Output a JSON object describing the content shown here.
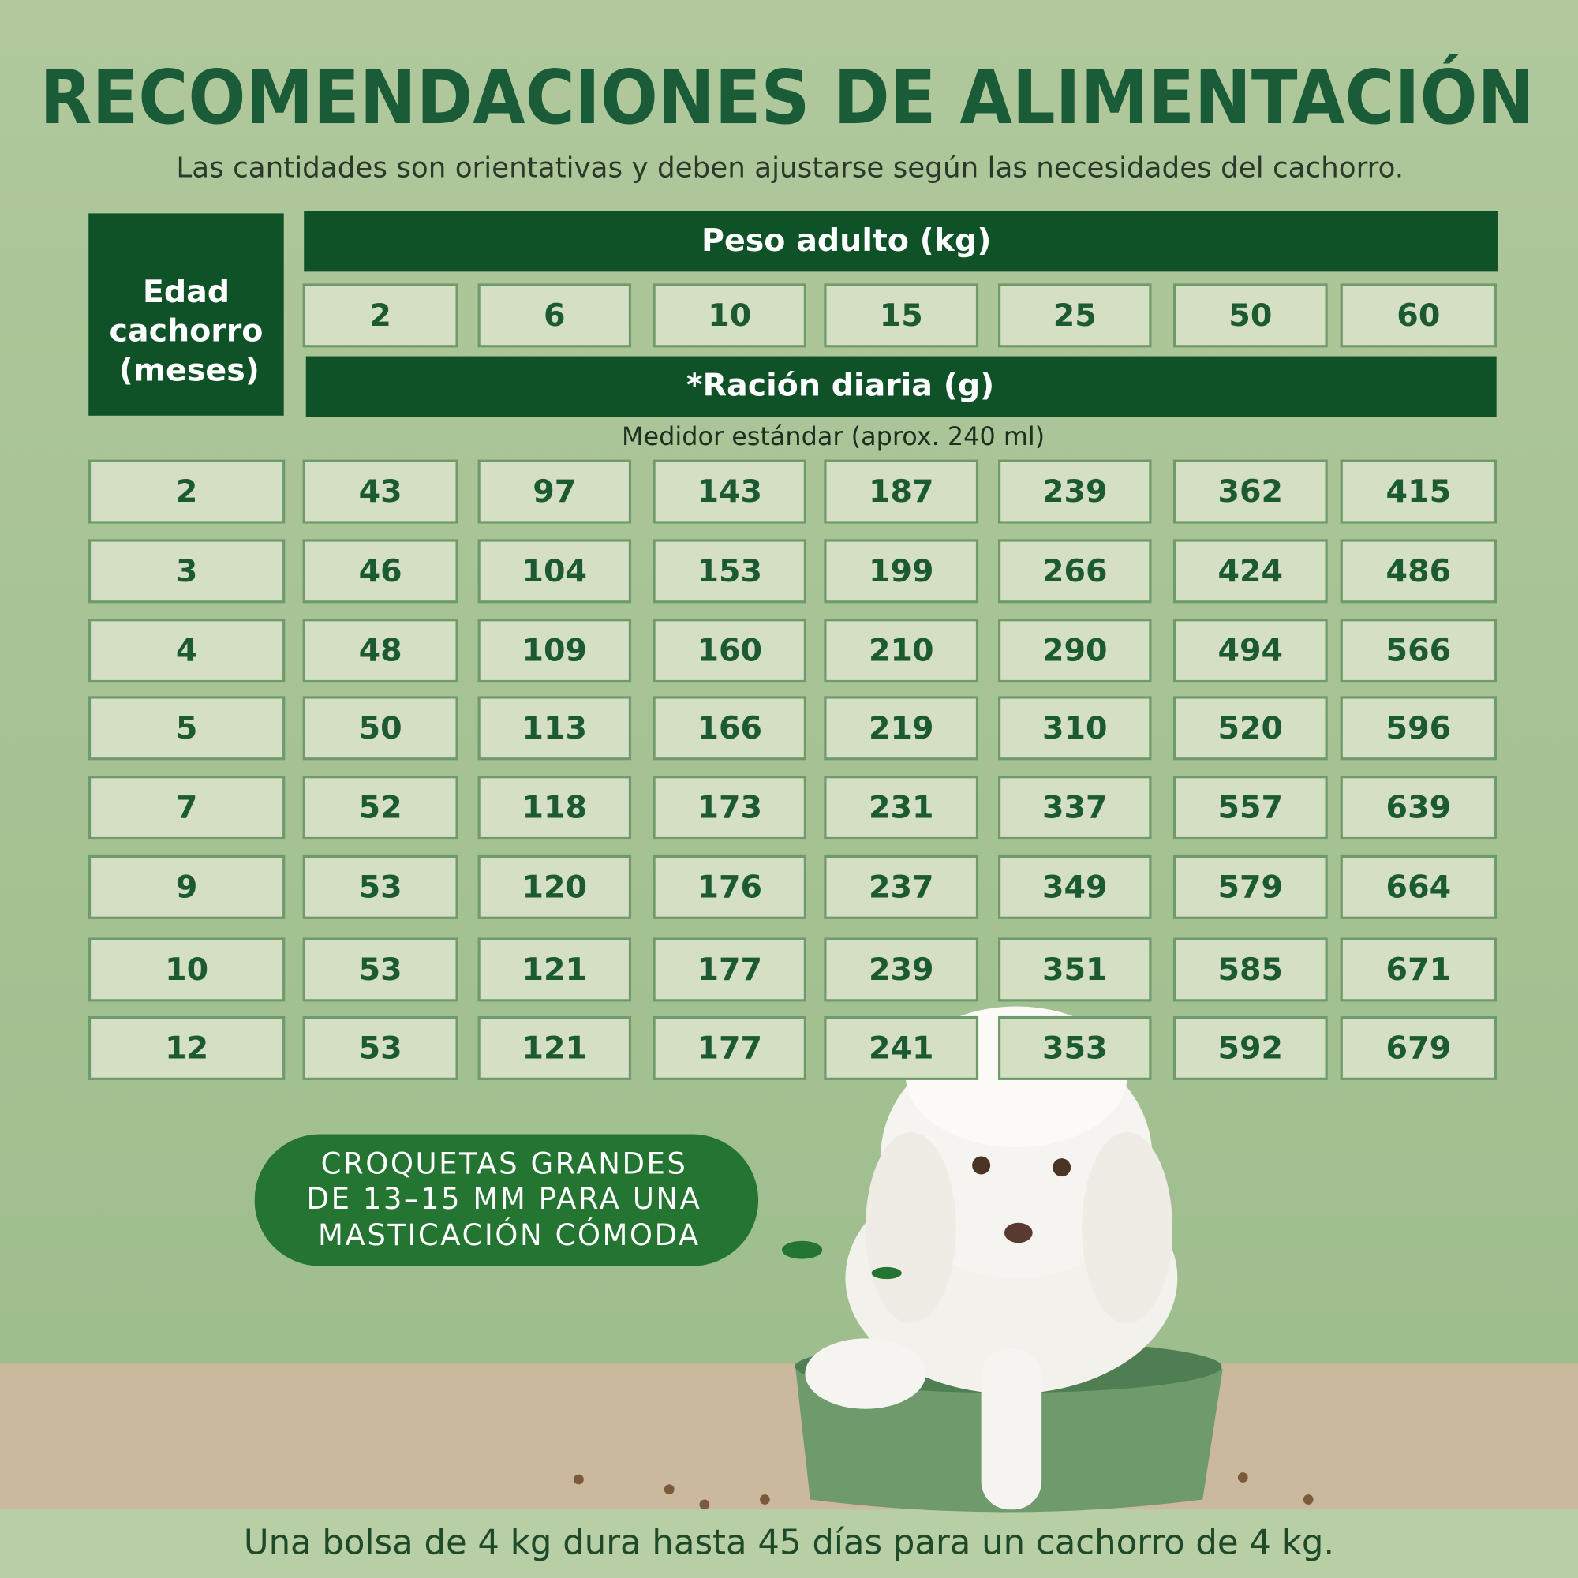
{
  "header": {
    "title": "RECOMENDACIONES DE ALIMENTACIÓN",
    "subtitle": "Las cantidades son orientativas y deben ajustarse según las necesidades del cachorro."
  },
  "table": {
    "age_header": [
      "Edad",
      "cachorro",
      "(meses)"
    ],
    "weight_header": "Peso adulto (kg)",
    "weights": [
      2,
      6,
      10,
      15,
      25,
      50,
      60
    ],
    "ration_header": "*Ración diaria (g)",
    "measure_note": "Medidor estándar (aprox. 240 ml)",
    "rows": [
      {
        "age": 2,
        "values": [
          43,
          97,
          143,
          187,
          239,
          362,
          415
        ]
      },
      {
        "age": 3,
        "values": [
          46,
          104,
          153,
          199,
          266,
          424,
          486
        ]
      },
      {
        "age": 4,
        "values": [
          48,
          109,
          160,
          210,
          290,
          494,
          566
        ]
      },
      {
        "age": 5,
        "values": [
          50,
          113,
          166,
          219,
          310,
          520,
          596
        ]
      },
      {
        "age": 7,
        "values": [
          52,
          118,
          173,
          231,
          337,
          557,
          639
        ]
      },
      {
        "age": 9,
        "values": [
          53,
          120,
          176,
          237,
          349,
          579,
          664
        ]
      },
      {
        "age": 10,
        "values": [
          53,
          121,
          177,
          239,
          351,
          585,
          671
        ]
      },
      {
        "age": 12,
        "values": [
          53,
          121,
          177,
          241,
          353,
          592,
          679
        ]
      }
    ]
  },
  "bubble": {
    "lines": [
      "CROQUETAS GRANDES",
      "DE 13–15 MM PARA UNA",
      "MASTICACIÓN CÓMODA"
    ]
  },
  "footer": {
    "text": "Una bolsa de 4 kg dura hasta 45 días para un cachorro de 4 kg."
  }
}
